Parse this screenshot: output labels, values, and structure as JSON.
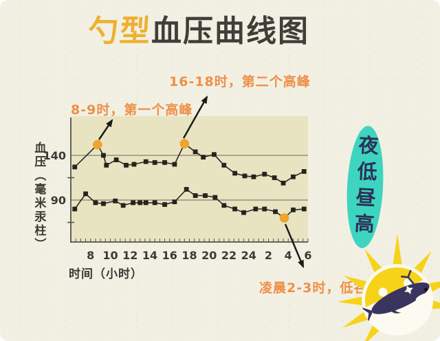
{
  "title": {
    "accent": "勺型",
    "rest": "血压曲线图"
  },
  "annotations": {
    "first_peak": "8-9时，第一个高峰",
    "second_peak": "16-18时，第二个高峰",
    "trough": "凌晨2-3时，低谷"
  },
  "side_label": "夜低昼高",
  "chart_data": {
    "type": "line",
    "title": "勺型血压曲线图",
    "xlabel": "时间（小时）",
    "ylabel": "血压（毫米汞柱）",
    "x_tick_labels": [
      "8",
      "10",
      "12",
      "14",
      "16",
      "18",
      "20",
      "22",
      "24",
      "2",
      "4",
      "6"
    ],
    "x_tick_hours": [
      8,
      10,
      12,
      14,
      16,
      18,
      20,
      22,
      24,
      26,
      28,
      30
    ],
    "xlim_hours": [
      6,
      30
    ],
    "ylim": [
      43,
      183
    ],
    "y_gridlines": [
      140,
      90
    ],
    "y_tick_labels": [
      "140",
      "90"
    ],
    "y_minor_ticks": [
      115,
      65
    ],
    "x_axis_minor_tick_step_hours": 0.5,
    "grid": "horizontal-only",
    "legend": "none",
    "series": [
      {
        "id": "upper-curve-systolic",
        "points": [
          [
            6.4,
            127
          ],
          [
            8.7,
            152
          ],
          [
            9.3,
            140
          ],
          [
            9.6,
            129
          ],
          [
            10.6,
            135
          ],
          [
            11.6,
            129
          ],
          [
            12.4,
            130
          ],
          [
            13.6,
            133
          ],
          [
            14.5,
            132
          ],
          [
            15.5,
            132
          ],
          [
            16.5,
            130
          ],
          [
            17.5,
            153
          ],
          [
            18.6,
            144
          ],
          [
            19.4,
            138
          ],
          [
            20.5,
            141
          ],
          [
            21.5,
            129
          ],
          [
            22.6,
            120
          ],
          [
            23.6,
            117
          ],
          [
            24.5,
            116
          ],
          [
            25.6,
            119
          ],
          [
            26.6,
            115
          ],
          [
            27.5,
            109
          ],
          [
            28.5,
            116
          ],
          [
            29.6,
            122
          ]
        ],
        "highlight_indices": [
          1,
          11
        ]
      },
      {
        "id": "lower-curve-diastolic",
        "points": [
          [
            6.4,
            80
          ],
          [
            7.5,
            97
          ],
          [
            8.5,
            87
          ],
          [
            9.3,
            86
          ],
          [
            10.5,
            89
          ],
          [
            11.3,
            84
          ],
          [
            12.3,
            87
          ],
          [
            13.0,
            87
          ],
          [
            13.6,
            87
          ],
          [
            14.5,
            87
          ],
          [
            15.5,
            85
          ],
          [
            16.5,
            88
          ],
          [
            17.7,
            102
          ],
          [
            18.6,
            95
          ],
          [
            19.6,
            95
          ],
          [
            20.6,
            93
          ],
          [
            21.5,
            84
          ],
          [
            22.6,
            80
          ],
          [
            23.5,
            76
          ],
          [
            24.7,
            80
          ],
          [
            25.6,
            80
          ],
          [
            26.7,
            77
          ],
          [
            27.6,
            70
          ],
          [
            28.5,
            79
          ],
          [
            29.6,
            80
          ]
        ],
        "highlight_indices": [
          22
        ]
      }
    ]
  },
  "icons": {
    "illustration": "sun-with-whale",
    "badge_shape": "teal-ellipse"
  },
  "colors": {
    "background": "#f2f0e3",
    "plot_background": "#e8e4c2",
    "title_accent": "#eeb02e",
    "title_text": "#403e39",
    "annotation_orange": "#ee8f47",
    "axis": "#55514a",
    "gridline": "#6a665a",
    "line": "#2b2823",
    "marker": "#26231f",
    "highlight_dot": "#eea42e",
    "arrow": "#1d1b18",
    "badge_teal": "#3dd5bf",
    "badge_text_navy": "#2b3156",
    "sun_yellow": "#f6d319",
    "sun_ring_cream": "#fbf9ee",
    "whale_navy": "#39355e"
  }
}
